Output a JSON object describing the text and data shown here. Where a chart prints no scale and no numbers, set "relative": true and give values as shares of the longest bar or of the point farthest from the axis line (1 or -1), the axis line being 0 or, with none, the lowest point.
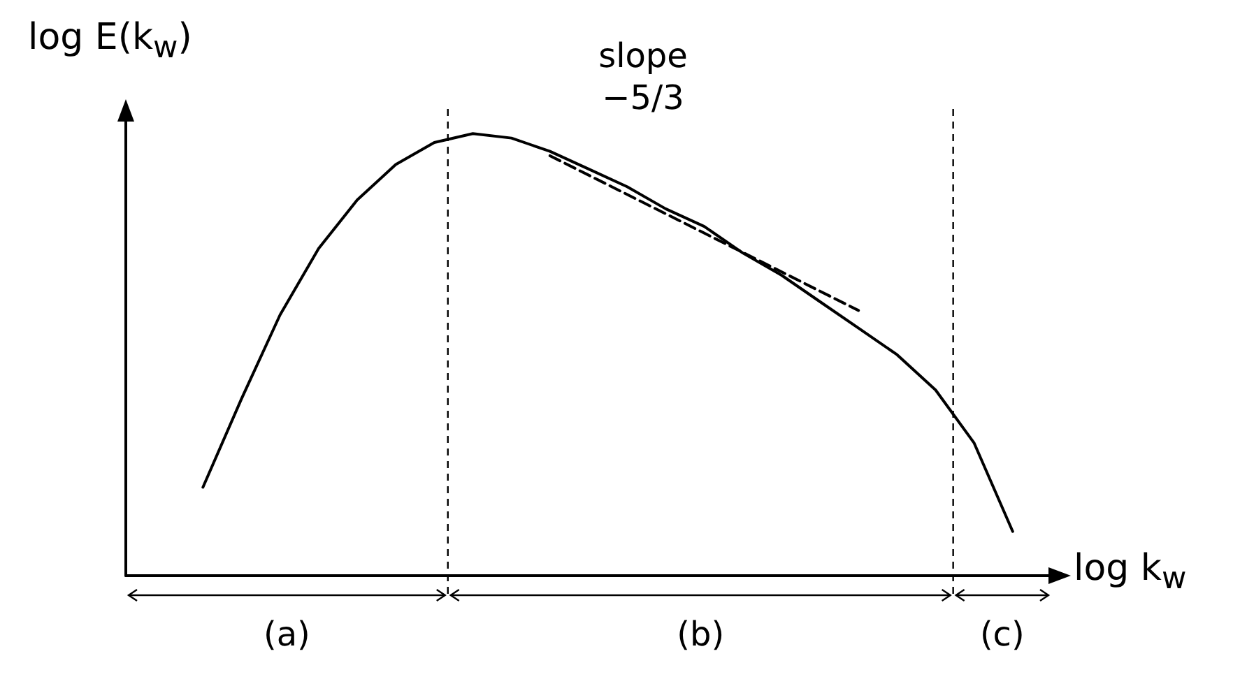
{
  "chart_data": {
    "type": "line",
    "relative": true,
    "xlabel": "log k$_{w}$",
    "ylabel": "log E(k$_{w}$)",
    "marker": "none",
    "grid": false,
    "categories": [
      null,
      null,
      null,
      null,
      null,
      null,
      null,
      null,
      null,
      null,
      null,
      null,
      null,
      null,
      null,
      null,
      null,
      null,
      null,
      null,
      null,
      null,
      null,
      null,
      null
    ],
    "series": [
      {
        "color": "#000000",
        "line_style": "solid",
        "values": [
          null,
          null,
          0.2,
          0.4,
          0.59,
          0.74,
          0.85,
          0.93,
          0.98,
          1.0,
          0.99,
          0.96,
          0.92,
          0.88,
          0.83,
          0.79,
          0.73,
          0.68,
          0.62,
          0.56,
          0.5,
          0.42,
          0.3,
          0.1,
          null
        ]
      },
      {
        "color": "#000000",
        "line_style": "dashed",
        "values": [
          null,
          null,
          null,
          null,
          null,
          null,
          null,
          null,
          null,
          null,
          null,
          0.95,
          null,
          null,
          null,
          null,
          null,
          null,
          null,
          0.6,
          null,
          null,
          null,
          null,
          null
        ]
      }
    ],
    "annotations": [
      "slope −5/3",
      "(a)",
      "(b)",
      "(c)"
    ]
  }
}
